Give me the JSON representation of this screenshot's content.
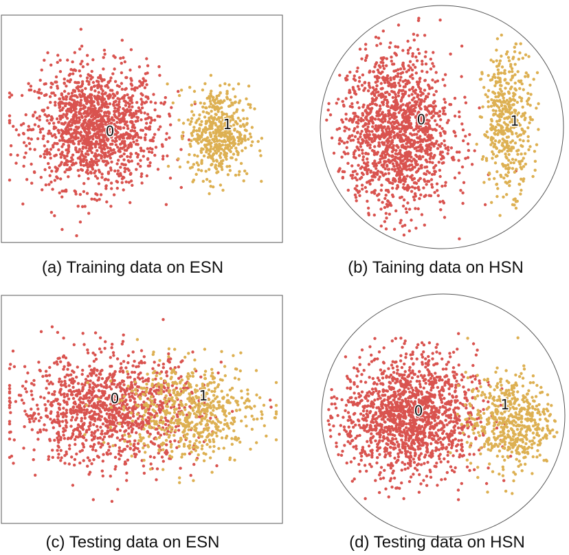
{
  "colors": {
    "class0": "#d9534f",
    "class1": "#ddb052",
    "frame": "#555555"
  },
  "chart_data": [
    {
      "type": "scatter",
      "title": "(a) Training data on ESN",
      "space": "euclidean",
      "cluster_labels": [
        "0",
        "1"
      ],
      "xlim": [
        -1,
        1
      ],
      "ylim": [
        -1,
        1
      ],
      "clusters": [
        {
          "label": "0",
          "center": [
            -0.35,
            0.02
          ],
          "spread": [
            0.42,
            0.5
          ],
          "count": 1400,
          "class": 0
        },
        {
          "label": "1",
          "center": [
            0.55,
            -0.02
          ],
          "spread": [
            0.2,
            0.38
          ],
          "count": 500,
          "class": 1
        }
      ],
      "label_positions": [
        [
          -0.33,
          0.08
        ],
        [
          0.62,
          0.12
        ]
      ]
    },
    {
      "type": "scatter",
      "title": "(b) Taining data on HSN",
      "space": "hyperbolic",
      "cluster_labels": [
        "0",
        "1"
      ],
      "xlim": [
        -1,
        1
      ],
      "ylim": [
        -1,
        1
      ],
      "clusters": [
        {
          "label": "0",
          "center": [
            -0.38,
            -0.05
          ],
          "spread": [
            0.42,
            0.62
          ],
          "count": 1500,
          "class": 0
        },
        {
          "label": "1",
          "center": [
            0.54,
            0.05
          ],
          "spread": [
            0.18,
            0.52
          ],
          "count": 450,
          "class": 1
        }
      ],
      "label_positions": [
        [
          -0.2,
          0.1
        ],
        [
          0.5,
          0.1
        ]
      ]
    },
    {
      "type": "scatter",
      "title": "(c) Testing data on ESN",
      "space": "euclidean",
      "cluster_labels": [
        "0",
        "1"
      ],
      "xlim": [
        -1,
        1
      ],
      "ylim": [
        -1,
        1
      ],
      "clusters": [
        {
          "label": "0",
          "center": [
            -0.25,
            0.0
          ],
          "spread": [
            0.6,
            0.45
          ],
          "count": 1200,
          "class": 0
        },
        {
          "label": "1",
          "center": [
            0.35,
            -0.02
          ],
          "spread": [
            0.45,
            0.4
          ],
          "count": 600,
          "class": 1
        }
      ],
      "label_positions": [
        [
          -0.2,
          0.02
        ],
        [
          0.38,
          0.02
        ]
      ]
    },
    {
      "type": "scatter",
      "title": "(d) Testing data on HSN",
      "space": "hyperbolic",
      "cluster_labels": [
        "0",
        "1"
      ],
      "xlim": [
        -1,
        1
      ],
      "ylim": [
        -1,
        1
      ],
      "clusters": [
        {
          "label": "0",
          "center": [
            -0.28,
            0.0
          ],
          "spread": [
            0.5,
            0.45
          ],
          "count": 1500,
          "class": 0
        },
        {
          "label": "1",
          "center": [
            0.55,
            -0.05
          ],
          "spread": [
            0.32,
            0.35
          ],
          "count": 550,
          "class": 1
        }
      ],
      "label_positions": [
        [
          -0.1,
          0.15
        ],
        [
          0.62,
          0.05
        ]
      ]
    }
  ]
}
